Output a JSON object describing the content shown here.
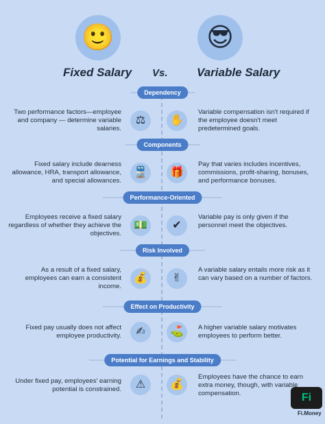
{
  "header": {
    "left_face": "🙂",
    "right_face": "😎",
    "fixed_title": "Fixed Salary",
    "vs_title": "Vs.",
    "variable_title": "Variable Salary"
  },
  "sections": [
    {
      "label": "Dependency",
      "left_text": "Two performance factors—employee and company — determine variable salaries.",
      "right_text": "Variable compensation isn't required if the employee doesn't meet predetermined goals.",
      "left_icon": "⚖",
      "right_icon": "✋"
    },
    {
      "label": "Components",
      "left_text": "Fixed salary include dearness allowance, HRA, transport allowance, and special allowances.",
      "right_text": "Pay that varies includes incentives, commissions, profit-sharing, bonuses, and performance bonuses.",
      "left_icon": "🚆",
      "right_icon": "🎁"
    },
    {
      "label": "Performance-Oriented",
      "left_text": "Employees receive a fixed salary regardless of whether they achieve the objectives.",
      "right_text": "Variable pay is only given if the personnel meet the objectives.",
      "left_icon": "💵",
      "right_icon": "✔"
    },
    {
      "label": "Risk Involved",
      "left_text": "As a result of a fixed salary, employees can earn a consistent income.",
      "right_text": "A variable salary entails more risk as it can vary based on a number of factors.",
      "left_icon": "💰",
      "right_icon": "✌"
    },
    {
      "label": "Effect on Productivity",
      "left_text": "Fixed pay usually does not affect employee productivity.",
      "right_text": "A higher variable salary motivates employees to perform better.",
      "left_icon": "✍",
      "right_icon": "⛳"
    },
    {
      "label": "Potential for Earnings and Stability",
      "left_text": "Under fixed pay, employees' earning potential is constrained.",
      "right_text": "Employees have the chance to earn extra money, though, with variable compensation.",
      "left_icon": "⚠",
      "right_icon": "💰"
    }
  ],
  "brand": {
    "logo": "Fi",
    "name": "Fi.Money"
  }
}
